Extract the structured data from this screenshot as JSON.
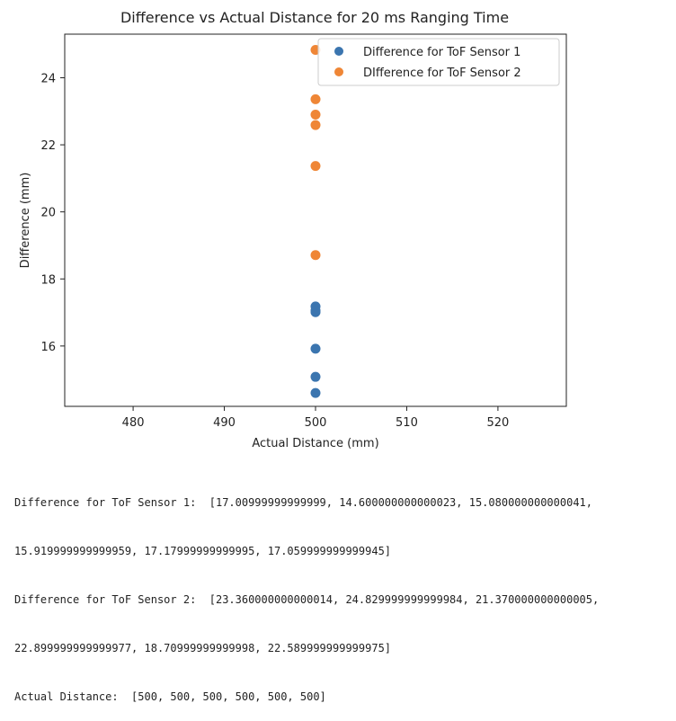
{
  "chart_data": {
    "type": "scatter",
    "title": "Difference vs Actual Distance for 20 ms Ranging Time",
    "xlabel": "Actual Distance (mm)",
    "ylabel": "Difference (mm)",
    "xlim": [
      472.5,
      527.5
    ],
    "ylim": [
      14.2,
      25.3
    ],
    "xticks": [
      "480",
      "490",
      "500",
      "510",
      "520"
    ],
    "yticks": [
      "16",
      "18",
      "20",
      "22",
      "24"
    ],
    "grid": false,
    "legend_position": "top-right",
    "series": [
      {
        "name": "Difference for ToF Sensor 1",
        "color": "#3b75af",
        "x": [
          500,
          500,
          500,
          500,
          500,
          500
        ],
        "y": [
          17.01,
          14.6,
          15.08,
          15.92,
          17.18,
          17.06
        ]
      },
      {
        "name": "DIfference for ToF Sensor 2",
        "color": "#ef8636",
        "x": [
          500,
          500,
          500,
          500,
          500,
          500
        ],
        "y": [
          23.36,
          24.83,
          21.37,
          22.9,
          18.71,
          22.59
        ]
      }
    ]
  },
  "output_lines": [
    "Difference for ToF Sensor 1:  [17.00999999999999, 14.600000000000023, 15.080000000000041,",
    "15.919999999999959, 17.17999999999995, 17.059999999999945]",
    "Difference for ToF Sensor 2:  [23.360000000000014, 24.829999999999984, 21.370000000000005,",
    "22.899999999999977, 18.70999999999998, 22.589999999999975]",
    "Actual Distance:  [500, 500, 500, 500, 500, 500]"
  ]
}
